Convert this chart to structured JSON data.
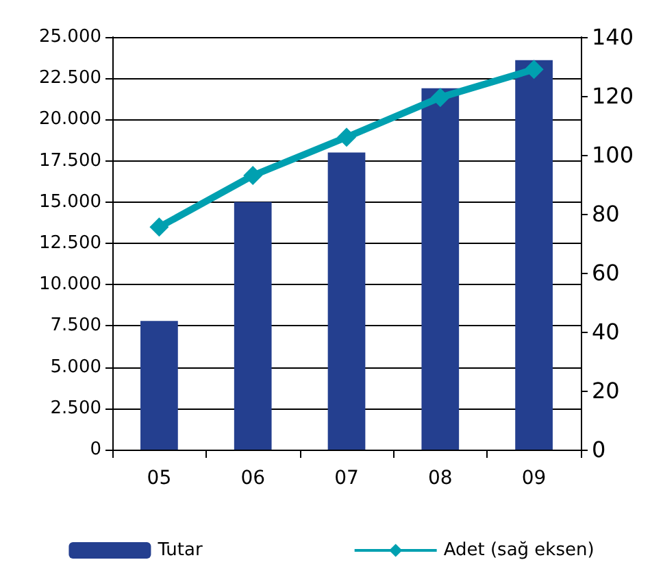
{
  "chart_data": {
    "type": "bar",
    "categories": [
      "05",
      "06",
      "07",
      "08",
      "09"
    ],
    "series": [
      {
        "name": "Tutar",
        "color": "#243f8f",
        "values": [
          7800,
          15000,
          18000,
          21900,
          23600
        ]
      },
      {
        "name": "Adet (sağ eksen)",
        "type": "line",
        "axis": "y2",
        "color": "#00a0b0",
        "marker": "diamond",
        "values": [
          75.5,
          93,
          106,
          119.5,
          129
        ]
      }
    ],
    "ylim": [
      0,
      25000
    ],
    "yticks": [
      {
        "value": 0,
        "label": "0"
      },
      {
        "value": 2500,
        "label": "2.500"
      },
      {
        "value": 5000,
        "label": "5.000"
      },
      {
        "value": 7500,
        "label": "7.500"
      },
      {
        "value": 10000,
        "label": "10.000"
      },
      {
        "value": 12500,
        "label": "12.500"
      },
      {
        "value": 15000,
        "label": "15.000"
      },
      {
        "value": 17500,
        "label": "17.500"
      },
      {
        "value": 20000,
        "label": "20.000"
      },
      {
        "value": 22500,
        "label": "22.500"
      },
      {
        "value": 25000,
        "label": "25.000"
      }
    ],
    "y2lim": [
      0,
      140
    ],
    "y2ticks": [
      0,
      20,
      40,
      60,
      80,
      100,
      120,
      140
    ],
    "grid": "y",
    "legend": "bottom"
  }
}
